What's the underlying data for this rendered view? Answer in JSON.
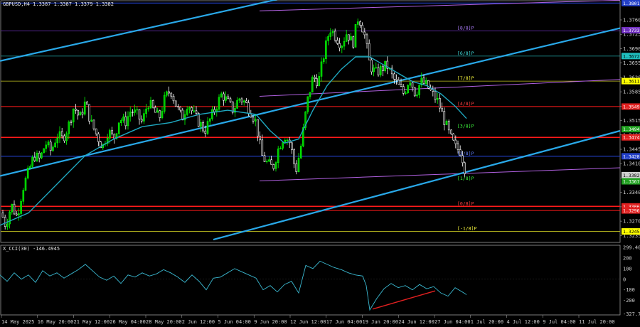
{
  "header": {
    "main_label": "GBPUSD,H4  1.3387 1.3387 1.3379 1.3382",
    "indicator_label": "X_CCI(30) -146.4945"
  },
  "colors": {
    "background": "#000000",
    "bull_candle": "#00ff00",
    "bear_candle": "#ffffff",
    "moving_average": "#1fa8c0",
    "channel_line": "#29a8e8",
    "murrey_line": "#b060e0",
    "resistance_red": "#ff1a1a",
    "level_blue": "#2340c8",
    "cci_line": "#3ab8d0",
    "divergence": "#e02020"
  },
  "price_axis": {
    "ticks": [
      "1.3760",
      "1.3725",
      "1.3690",
      "1.3655",
      "1.3620",
      "1.3585",
      "1.3550",
      "1.3515",
      "1.3480",
      "1.3445",
      "1.3410",
      "1.3375",
      "1.3340",
      "1.3305",
      "1.3270",
      "1.3235"
    ],
    "min": 1.322,
    "max": 1.3805
  },
  "price_tags": [
    {
      "text": "1.3801",
      "price": 1.3801,
      "bg": "#2340c8",
      "fg": "#ffffff"
    },
    {
      "text": "1.3733",
      "price": 1.3735,
      "bg": "#7030c0",
      "fg": "#ffffff"
    },
    {
      "text": "1.3672",
      "price": 1.3672,
      "bg": "#20c0c0",
      "fg": "#000000"
    },
    {
      "text": "1.3611",
      "price": 1.3611,
      "bg": "#ffff00",
      "fg": "#000000"
    },
    {
      "text": "1.3549",
      "price": 1.3549,
      "bg": "#e02020",
      "fg": "#ffffff"
    },
    {
      "text": "1.3494",
      "price": 1.3494,
      "bg": "#20a020",
      "fg": "#ffffff"
    },
    {
      "text": "1.3474",
      "price": 1.3474,
      "bg": "#e02020",
      "fg": "#ffffff"
    },
    {
      "text": "1.3428",
      "price": 1.3428,
      "bg": "#2340c8",
      "fg": "#ffffff"
    },
    {
      "text": "1.3382",
      "price": 1.3382,
      "bg": "#d0d0d0",
      "fg": "#000000"
    },
    {
      "text": "1.3367",
      "price": 1.3367,
      "bg": "#20a020",
      "fg": "#ffffff"
    },
    {
      "text": "1.3306",
      "price": 1.3306,
      "bg": "#e02020",
      "fg": "#ffffff"
    },
    {
      "text": "1.3296",
      "price": 1.3296,
      "bg": "#e02020",
      "fg": "#ffffff"
    },
    {
      "text": "1.3245",
      "price": 1.3245,
      "bg": "#ffff00",
      "fg": "#000000"
    }
  ],
  "murrey_labels": [
    {
      "text": "[8/8]P",
      "price": 1.3733,
      "color": "#b080ff"
    },
    {
      "text": "[6/8]P",
      "price": 1.3672,
      "color": "#40e0e0"
    },
    {
      "text": "[7/8]P",
      "price": 1.3611,
      "color": "#ffff40"
    },
    {
      "text": "[4/8]P",
      "price": 1.3549,
      "color": "#ff4040"
    },
    {
      "text": "[3/8]P",
      "price": 1.3494,
      "color": "#40ff40"
    },
    {
      "text": "[2/8]P",
      "price": 1.3428,
      "color": "#6080ff"
    },
    {
      "text": "[1/8]P",
      "price": 1.3367,
      "color": "#40ff40"
    },
    {
      "text": "[0/8]P",
      "price": 1.3306,
      "color": "#ff4040"
    },
    {
      "text": "[-1/8]P",
      "price": 1.3245,
      "color": "#ffff40"
    }
  ],
  "cci_axis": {
    "ticks": [
      "299.4065",
      "200",
      "100",
      "0",
      "-100",
      "-200",
      "-327.7193"
    ],
    "min": -330,
    "max": 300
  },
  "time_axis": [
    "14 May 2025",
    "16 May 20:00",
    "21 May 12:00",
    "26 May 04:00",
    "28 May 20:00",
    "2 Jun 12:00",
    "5 Jun 04:00",
    "9 Jun 20:00",
    "12 Jun 12:00",
    "17 Jun 04:00",
    "19 Jun 20:00",
    "24 Jun 12:00",
    "27 Jun 04:00",
    "1 Jul 20:00",
    "4 Jul 12:00",
    "9 Jul 04:00",
    "11 Jul 20:00"
  ],
  "chart_data": {
    "type": "candlestick",
    "symbol": "GBPUSD",
    "timeframe": "H4",
    "last_bar": {
      "open": 1.3387,
      "high": 1.3387,
      "low": 1.3379,
      "close": 1.3382
    },
    "close_path": [
      [
        0,
        1.33
      ],
      [
        8,
        1.326
      ],
      [
        16,
        1.331
      ],
      [
        24,
        1.328
      ],
      [
        32,
        1.335
      ],
      [
        40,
        1.339
      ],
      [
        48,
        1.343
      ],
      [
        56,
        1.342
      ],
      [
        64,
        1.346
      ],
      [
        72,
        1.344
      ],
      [
        80,
        1.348
      ],
      [
        88,
        1.347
      ],
      [
        96,
        1.35
      ],
      [
        104,
        1.355
      ],
      [
        112,
        1.352
      ],
      [
        120,
        1.356
      ],
      [
        128,
        1.351
      ],
      [
        136,
        1.348
      ],
      [
        144,
        1.345
      ],
      [
        152,
        1.349
      ],
      [
        160,
        1.347
      ],
      [
        168,
        1.352
      ],
      [
        176,
        1.351
      ],
      [
        184,
        1.354
      ],
      [
        192,
        1.353
      ],
      [
        200,
        1.351
      ],
      [
        208,
        1.356
      ],
      [
        216,
        1.354
      ],
      [
        224,
        1.352
      ],
      [
        232,
        1.357
      ],
      [
        240,
        1.359
      ],
      [
        248,
        1.355
      ],
      [
        256,
        1.352
      ],
      [
        264,
        1.356
      ],
      [
        272,
        1.353
      ],
      [
        280,
        1.351
      ],
      [
        288,
        1.349
      ],
      [
        296,
        1.352
      ],
      [
        304,
        1.355
      ],
      [
        312,
        1.358
      ],
      [
        320,
        1.356
      ],
      [
        328,
        1.354
      ],
      [
        336,
        1.357
      ],
      [
        344,
        1.356
      ],
      [
        352,
        1.354
      ],
      [
        360,
        1.351
      ],
      [
        368,
        1.343
      ],
      [
        376,
        1.341
      ],
      [
        384,
        1.34
      ],
      [
        392,
        1.345
      ],
      [
        400,
        1.348
      ],
      [
        408,
        1.346
      ],
      [
        416,
        1.339
      ],
      [
        424,
        1.346
      ],
      [
        432,
        1.356
      ],
      [
        440,
        1.362
      ],
      [
        448,
        1.361
      ],
      [
        456,
        1.368
      ],
      [
        464,
        1.374
      ],
      [
        472,
        1.372
      ],
      [
        480,
        1.37
      ],
      [
        488,
        1.373
      ],
      [
        496,
        1.37
      ],
      [
        504,
        1.377
      ],
      [
        512,
        1.373
      ],
      [
        520,
        1.365
      ],
      [
        528,
        1.363
      ],
      [
        536,
        1.364
      ],
      [
        544,
        1.365
      ],
      [
        552,
        1.362
      ],
      [
        560,
        1.36
      ],
      [
        568,
        1.358
      ],
      [
        576,
        1.362
      ],
      [
        584,
        1.358
      ],
      [
        592,
        1.361
      ],
      [
        600,
        1.36
      ],
      [
        608,
        1.358
      ],
      [
        616,
        1.356
      ],
      [
        624,
        1.352
      ],
      [
        632,
        1.348
      ],
      [
        640,
        1.345
      ],
      [
        648,
        1.344
      ],
      [
        656,
        1.3382
      ]
    ],
    "moving_average": [
      [
        0,
        1.326
      ],
      [
        40,
        1.329
      ],
      [
        80,
        1.336
      ],
      [
        120,
        1.343
      ],
      [
        160,
        1.347
      ],
      [
        200,
        1.35
      ],
      [
        240,
        1.351
      ],
      [
        280,
        1.353
      ],
      [
        320,
        1.354
      ],
      [
        360,
        1.353
      ],
      [
        380,
        1.349
      ],
      [
        400,
        1.346
      ],
      [
        420,
        1.347
      ],
      [
        440,
        1.354
      ],
      [
        460,
        1.36
      ],
      [
        480,
        1.364
      ],
      [
        500,
        1.367
      ],
      [
        520,
        1.367
      ],
      [
        540,
        1.365
      ],
      [
        560,
        1.363
      ],
      [
        580,
        1.361
      ],
      [
        600,
        1.36
      ],
      [
        620,
        1.358
      ],
      [
        640,
        1.355
      ],
      [
        656,
        1.352
      ]
    ],
    "channel_lines": [
      [
        [
          0,
          1.366
        ],
        [
          390,
          1.381
        ]
      ],
      [
        [
          0,
          1.338
        ],
        [
          900,
          1.374
        ]
      ],
      [
        [
          300,
          1.3225
        ],
        [
          900,
          1.349
        ]
      ]
    ],
    "murrey_lines": [
      [
        [
          365,
          1.3782
        ],
        [
          900,
          1.3808
        ]
      ],
      [
        [
          365,
          1.3574
        ],
        [
          900,
          1.3615
        ]
      ],
      [
        [
          365,
          1.3368
        ],
        [
          900,
          1.34
        ]
      ]
    ],
    "horizontal_levels": [
      {
        "price": 1.3801,
        "color": "#2340c8",
        "width": 1.2
      },
      {
        "price": 1.3733,
        "color": "#7030c0",
        "width": 0.8
      },
      {
        "price": 1.3672,
        "color": "#20a0a0",
        "width": 0.8
      },
      {
        "price": 1.3611,
        "color": "#c0c020",
        "width": 0.8
      },
      {
        "price": 1.3549,
        "color": "#ff1a1a",
        "width": 1
      },
      {
        "price": 1.3474,
        "color": "#ff1a1a",
        "width": 1.6
      },
      {
        "price": 1.3428,
        "color": "#2340c8",
        "width": 1.2
      },
      {
        "price": 1.3306,
        "color": "#ff1a1a",
        "width": 1.6
      },
      {
        "price": 1.3296,
        "color": "#ff1a1a",
        "width": 1
      },
      {
        "price": 1.3245,
        "color": "#c0c020",
        "width": 0.8
      }
    ],
    "cci_path": [
      [
        0,
        40
      ],
      [
        10,
        -20
      ],
      [
        20,
        60
      ],
      [
        30,
        0
      ],
      [
        40,
        40
      ],
      [
        50,
        -30
      ],
      [
        60,
        80
      ],
      [
        70,
        30
      ],
      [
        80,
        60
      ],
      [
        90,
        10
      ],
      [
        100,
        50
      ],
      [
        110,
        90
      ],
      [
        120,
        140
      ],
      [
        130,
        80
      ],
      [
        140,
        20
      ],
      [
        150,
        -10
      ],
      [
        160,
        30
      ],
      [
        170,
        -40
      ],
      [
        180,
        40
      ],
      [
        190,
        20
      ],
      [
        200,
        60
      ],
      [
        210,
        30
      ],
      [
        220,
        50
      ],
      [
        230,
        90
      ],
      [
        240,
        60
      ],
      [
        250,
        20
      ],
      [
        260,
        -30
      ],
      [
        270,
        40
      ],
      [
        280,
        -20
      ],
      [
        290,
        -100
      ],
      [
        300,
        10
      ],
      [
        310,
        20
      ],
      [
        320,
        60
      ],
      [
        330,
        100
      ],
      [
        340,
        70
      ],
      [
        350,
        40
      ],
      [
        360,
        10
      ],
      [
        370,
        -100
      ],
      [
        380,
        -60
      ],
      [
        390,
        -120
      ],
      [
        400,
        -50
      ],
      [
        410,
        -20
      ],
      [
        420,
        -130
      ],
      [
        430,
        130
      ],
      [
        440,
        100
      ],
      [
        450,
        170
      ],
      [
        460,
        140
      ],
      [
        470,
        110
      ],
      [
        480,
        90
      ],
      [
        490,
        60
      ],
      [
        500,
        40
      ],
      [
        510,
        30
      ],
      [
        515,
        -60
      ],
      [
        520,
        -290
      ],
      [
        530,
        -180
      ],
      [
        540,
        -90
      ],
      [
        550,
        -40
      ],
      [
        560,
        -80
      ],
      [
        570,
        -60
      ],
      [
        580,
        -100
      ],
      [
        590,
        -50
      ],
      [
        600,
        -90
      ],
      [
        610,
        -70
      ],
      [
        620,
        -130
      ],
      [
        630,
        -160
      ],
      [
        640,
        -80
      ],
      [
        650,
        -120
      ],
      [
        656,
        -146
      ]
    ],
    "divergence_line": [
      [
        524,
        -282
      ],
      [
        612,
        -110
      ]
    ]
  }
}
